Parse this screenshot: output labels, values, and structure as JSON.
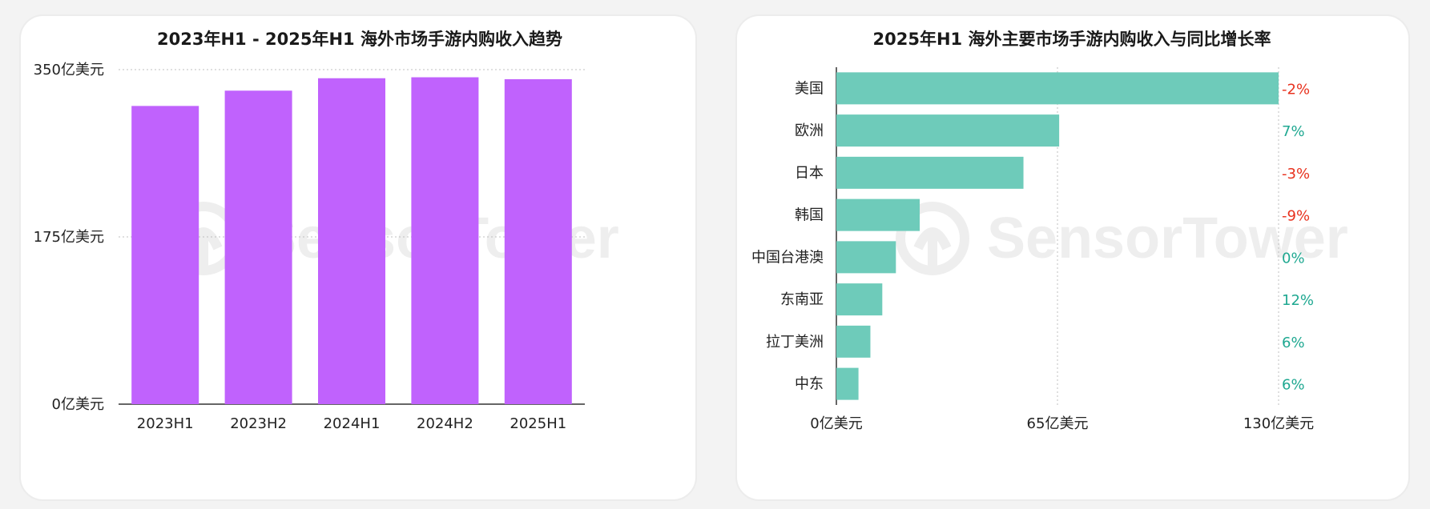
{
  "watermark": "SensorTower",
  "colors": {
    "purple": "#c062fd",
    "teal": "#6ecbba",
    "negative": "#e8311d",
    "positive": "#1fa891"
  },
  "chart_data": [
    {
      "type": "bar",
      "title": "2023年H1 - 2025年H1 海外市场手游内购收入趋势",
      "categories": [
        "2023H1",
        "2023H2",
        "2024H1",
        "2024H2",
        "2025H1"
      ],
      "values": [
        312,
        328,
        341,
        342,
        340
      ],
      "ylim": [
        0,
        350
      ],
      "yticks": [
        0,
        175,
        350
      ],
      "ytick_labels": [
        "0亿美元",
        "175亿美元",
        "350亿美元"
      ],
      "grid": true
    },
    {
      "type": "bar",
      "orientation": "horizontal",
      "title": "2025年H1 海外主要市场手游内购收入与同比增长率",
      "categories": [
        "美国",
        "欧洲",
        "日本",
        "韩国",
        "中国台港澳",
        "东南亚",
        "拉丁美洲",
        "中东"
      ],
      "values": [
        130,
        65.5,
        55,
        24.5,
        17.5,
        13.5,
        10,
        6.5
      ],
      "growth_labels": [
        "-2%",
        "7%",
        "-3%",
        "-9%",
        "0%",
        "12%",
        "6%",
        "6%"
      ],
      "growth": [
        -2,
        7,
        -3,
        -9,
        0,
        12,
        6,
        6
      ],
      "xlim": [
        0,
        130
      ],
      "xticks": [
        0,
        65,
        130
      ],
      "xtick_labels": [
        "0亿美元",
        "65亿美元",
        "130亿美元"
      ],
      "grid": true
    }
  ]
}
